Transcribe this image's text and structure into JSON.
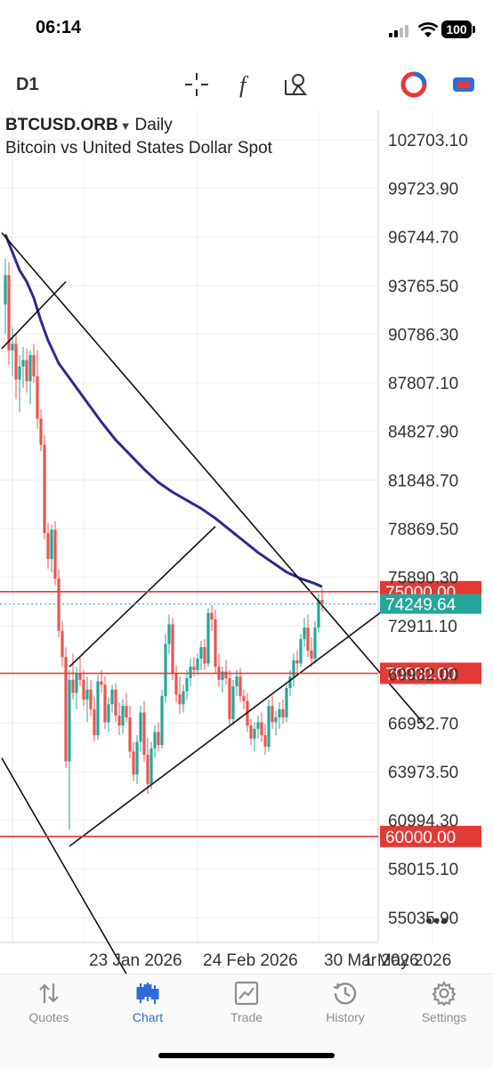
{
  "status_bar": {
    "time": "06:14",
    "battery": "100"
  },
  "toolbar": {
    "timeframe": "D1",
    "icons": [
      "crosshair-icon",
      "function-icon",
      "objects-icon",
      "trade-toggle-icon",
      "account-icon"
    ]
  },
  "chart": {
    "symbol": "BTCUSD.ORB",
    "period": "Daily",
    "description": "Bitcoin vs United States Dollar Spot",
    "price_labels": [
      "102703.10",
      "99723.90",
      "96744.70",
      "93765.50",
      "90786.30",
      "87807.10",
      "84827.90",
      "81848.70",
      "78869.50",
      "75890.30",
      "72911.10",
      "69932.00",
      "66952.70",
      "63973.50",
      "60994.30",
      "58015.10",
      "55035.90"
    ],
    "date_labels": [
      "23 Jan 2026",
      "24 Feb 2026",
      "30 Mar 2026",
      "1 May 2026"
    ],
    "horizontal_levels": [
      {
        "price": "75000.00",
        "color": "#e53935"
      },
      {
        "price": "70000.00",
        "color": "#e53935"
      },
      {
        "price": "60000.00",
        "color": "#e53935"
      }
    ],
    "current_price": {
      "price": "74249.64",
      "color": "#26a69a"
    },
    "colors": {
      "bull": "#26a69a",
      "bear": "#ef5350",
      "ma": "#2e2a8f",
      "levels": "#e53935"
    }
  },
  "chart_data": {
    "type": "candlestick",
    "y_range": [
      53500,
      104500
    ],
    "y_ticks": [
      102703.1,
      99723.9,
      96744.7,
      93765.5,
      90786.3,
      87807.1,
      84827.9,
      81848.7,
      78869.5,
      75890.3,
      72911.1,
      69932.0,
      66952.7,
      63973.5,
      60994.3,
      58015.1,
      55035.9
    ],
    "x_ticks": [
      "23 Jan 2026",
      "24 Feb 2026",
      "30 Mar 2026",
      "1 May 2026"
    ],
    "x_tick_dates": [
      "2026-01-23",
      "2026-02-24",
      "2026-03-30",
      "2026-05-01"
    ],
    "candles": [
      {
        "d": "2026-01-01",
        "o": 92600,
        "h": 95400,
        "l": 90800,
        "c": 94400
      },
      {
        "d": "2026-01-02",
        "o": 94400,
        "h": 95200,
        "l": 88900,
        "c": 89800
      },
      {
        "d": "2026-01-03",
        "o": 89800,
        "h": 91200,
        "l": 88200,
        "c": 90200
      },
      {
        "d": "2026-01-04",
        "o": 90200,
        "h": 90800,
        "l": 86800,
        "c": 88000
      },
      {
        "d": "2026-01-05",
        "o": 88000,
        "h": 89500,
        "l": 86000,
        "c": 88800
      },
      {
        "d": "2026-01-06",
        "o": 88800,
        "h": 90000,
        "l": 87500,
        "c": 89200
      },
      {
        "d": "2026-01-07",
        "o": 89200,
        "h": 89900,
        "l": 87200,
        "c": 87900
      },
      {
        "d": "2026-01-08",
        "o": 87900,
        "h": 89800,
        "l": 86500,
        "c": 89500
      },
      {
        "d": "2026-01-09",
        "o": 89500,
        "h": 90200,
        "l": 87800,
        "c": 88200
      },
      {
        "d": "2026-01-10",
        "o": 88200,
        "h": 89800,
        "l": 85000,
        "c": 85600
      },
      {
        "d": "2026-01-11",
        "o": 85600,
        "h": 86200,
        "l": 83600,
        "c": 84000
      },
      {
        "d": "2026-01-12",
        "o": 84000,
        "h": 84600,
        "l": 78200,
        "c": 78600
      },
      {
        "d": "2026-01-13",
        "o": 78600,
        "h": 79200,
        "l": 76400,
        "c": 77000
      },
      {
        "d": "2026-01-14",
        "o": 77000,
        "h": 79100,
        "l": 76200,
        "c": 78800
      },
      {
        "d": "2026-01-15",
        "o": 78800,
        "h": 79300,
        "l": 75400,
        "c": 75800
      },
      {
        "d": "2026-01-16",
        "o": 75800,
        "h": 76400,
        "l": 72200,
        "c": 72600
      },
      {
        "d": "2026-01-17",
        "o": 72600,
        "h": 73200,
        "l": 70400,
        "c": 71000
      },
      {
        "d": "2026-01-18",
        "o": 71000,
        "h": 71600,
        "l": 64200,
        "c": 64600
      },
      {
        "d": "2026-01-19",
        "o": 64600,
        "h": 70200,
        "l": 60400,
        "c": 69600
      },
      {
        "d": "2026-01-20",
        "o": 69600,
        "h": 71200,
        "l": 68400,
        "c": 68800
      },
      {
        "d": "2026-01-21",
        "o": 68800,
        "h": 70400,
        "l": 67800,
        "c": 70000
      },
      {
        "d": "2026-01-22",
        "o": 70000,
        "h": 71000,
        "l": 69200,
        "c": 69600
      },
      {
        "d": "2026-01-23",
        "o": 69600,
        "h": 70200,
        "l": 68000,
        "c": 68400
      },
      {
        "d": "2026-01-24",
        "o": 68400,
        "h": 69800,
        "l": 67000,
        "c": 69000
      },
      {
        "d": "2026-01-25",
        "o": 69000,
        "h": 69600,
        "l": 67400,
        "c": 67800
      },
      {
        "d": "2026-01-26",
        "o": 67800,
        "h": 68600,
        "l": 65800,
        "c": 66200
      },
      {
        "d": "2026-01-27",
        "o": 66200,
        "h": 69900,
        "l": 65900,
        "c": 69500
      },
      {
        "d": "2026-01-28",
        "o": 69500,
        "h": 70200,
        "l": 68800,
        "c": 69300
      },
      {
        "d": "2026-01-29",
        "o": 69300,
        "h": 69800,
        "l": 66600,
        "c": 67000
      },
      {
        "d": "2026-01-30",
        "o": 67000,
        "h": 68500,
        "l": 66400,
        "c": 68100
      },
      {
        "d": "2026-01-31",
        "o": 68100,
        "h": 69300,
        "l": 67600,
        "c": 69000
      },
      {
        "d": "2026-02-01",
        "o": 69000,
        "h": 69400,
        "l": 67000,
        "c": 67400
      },
      {
        "d": "2026-02-02",
        "o": 67400,
        "h": 68200,
        "l": 66200,
        "c": 66800
      },
      {
        "d": "2026-02-03",
        "o": 66800,
        "h": 68400,
        "l": 66300,
        "c": 68000
      },
      {
        "d": "2026-02-04",
        "o": 68000,
        "h": 68800,
        "l": 67000,
        "c": 67300
      },
      {
        "d": "2026-02-05",
        "o": 67300,
        "h": 68000,
        "l": 64800,
        "c": 65200
      },
      {
        "d": "2026-02-06",
        "o": 65200,
        "h": 65800,
        "l": 63400,
        "c": 63800
      },
      {
        "d": "2026-02-07",
        "o": 63800,
        "h": 66200,
        "l": 63200,
        "c": 65800
      },
      {
        "d": "2026-02-08",
        "o": 65800,
        "h": 68000,
        "l": 65200,
        "c": 67600
      },
      {
        "d": "2026-02-09",
        "o": 67600,
        "h": 68300,
        "l": 64600,
        "c": 65000
      },
      {
        "d": "2026-02-10",
        "o": 65000,
        "h": 66000,
        "l": 62600,
        "c": 63200
      },
      {
        "d": "2026-02-11",
        "o": 63200,
        "h": 65800,
        "l": 62900,
        "c": 65400
      },
      {
        "d": "2026-02-12",
        "o": 65400,
        "h": 66800,
        "l": 64800,
        "c": 66400
      },
      {
        "d": "2026-02-13",
        "o": 66400,
        "h": 67000,
        "l": 65200,
        "c": 65600
      },
      {
        "d": "2026-02-14",
        "o": 65600,
        "h": 69000,
        "l": 65400,
        "c": 68600
      },
      {
        "d": "2026-02-15",
        "o": 68600,
        "h": 72400,
        "l": 68200,
        "c": 71800
      },
      {
        "d": "2026-02-16",
        "o": 71800,
        "h": 73600,
        "l": 71200,
        "c": 73000
      },
      {
        "d": "2026-02-17",
        "o": 73000,
        "h": 73400,
        "l": 69600,
        "c": 70000
      },
      {
        "d": "2026-02-18",
        "o": 70000,
        "h": 70500,
        "l": 68200,
        "c": 68700
      },
      {
        "d": "2026-02-19",
        "o": 68700,
        "h": 69800,
        "l": 67500,
        "c": 68100
      },
      {
        "d": "2026-02-20",
        "o": 68100,
        "h": 69300,
        "l": 67600,
        "c": 68900
      },
      {
        "d": "2026-02-21",
        "o": 68900,
        "h": 70200,
        "l": 68400,
        "c": 69700
      },
      {
        "d": "2026-02-22",
        "o": 69700,
        "h": 70900,
        "l": 69200,
        "c": 70400
      },
      {
        "d": "2026-02-23",
        "o": 70400,
        "h": 71000,
        "l": 69800,
        "c": 70200
      },
      {
        "d": "2026-02-24",
        "o": 70200,
        "h": 71200,
        "l": 69900,
        "c": 70900
      },
      {
        "d": "2026-02-25",
        "o": 70900,
        "h": 72000,
        "l": 70200,
        "c": 71600
      },
      {
        "d": "2026-02-26",
        "o": 71600,
        "h": 72100,
        "l": 70200,
        "c": 70600
      },
      {
        "d": "2026-02-27",
        "o": 70600,
        "h": 74000,
        "l": 70400,
        "c": 73700
      },
      {
        "d": "2026-02-28",
        "o": 73700,
        "h": 74200,
        "l": 72600,
        "c": 73300
      },
      {
        "d": "2026-03-01",
        "o": 73300,
        "h": 73900,
        "l": 70000,
        "c": 70400
      },
      {
        "d": "2026-03-02",
        "o": 70400,
        "h": 71200,
        "l": 69200,
        "c": 69600
      },
      {
        "d": "2026-03-03",
        "o": 69600,
        "h": 70400,
        "l": 68800,
        "c": 70100
      },
      {
        "d": "2026-03-04",
        "o": 70100,
        "h": 70800,
        "l": 69300,
        "c": 69700
      },
      {
        "d": "2026-03-05",
        "o": 69700,
        "h": 70200,
        "l": 66800,
        "c": 67200
      },
      {
        "d": "2026-03-06",
        "o": 67200,
        "h": 69600,
        "l": 66800,
        "c": 69200
      },
      {
        "d": "2026-03-07",
        "o": 69200,
        "h": 70200,
        "l": 68600,
        "c": 69800
      },
      {
        "d": "2026-03-08",
        "o": 69800,
        "h": 70300,
        "l": 68200,
        "c": 68600
      },
      {
        "d": "2026-03-09",
        "o": 68600,
        "h": 69000,
        "l": 67800,
        "c": 68300
      },
      {
        "d": "2026-03-10",
        "o": 68300,
        "h": 68800,
        "l": 66400,
        "c": 66800
      },
      {
        "d": "2026-03-11",
        "o": 66800,
        "h": 67200,
        "l": 65600,
        "c": 66000
      },
      {
        "d": "2026-03-12",
        "o": 66000,
        "h": 67000,
        "l": 65200,
        "c": 66600
      },
      {
        "d": "2026-03-13",
        "o": 66600,
        "h": 67400,
        "l": 66000,
        "c": 67000
      },
      {
        "d": "2026-03-14",
        "o": 67000,
        "h": 67600,
        "l": 65800,
        "c": 66200
      },
      {
        "d": "2026-03-15",
        "o": 66200,
        "h": 66900,
        "l": 65000,
        "c": 65500
      },
      {
        "d": "2026-03-16",
        "o": 65500,
        "h": 68400,
        "l": 65200,
        "c": 68000
      },
      {
        "d": "2026-03-17",
        "o": 68000,
        "h": 68600,
        "l": 66600,
        "c": 67000
      },
      {
        "d": "2026-03-18",
        "o": 67000,
        "h": 67700,
        "l": 66200,
        "c": 67300
      },
      {
        "d": "2026-03-19",
        "o": 67300,
        "h": 68200,
        "l": 66600,
        "c": 67800
      },
      {
        "d": "2026-03-20",
        "o": 67800,
        "h": 68400,
        "l": 66900,
        "c": 67300
      },
      {
        "d": "2026-03-21",
        "o": 67300,
        "h": 69300,
        "l": 67000,
        "c": 69100
      },
      {
        "d": "2026-03-22",
        "o": 69100,
        "h": 70200,
        "l": 68600,
        "c": 69800
      },
      {
        "d": "2026-03-23",
        "o": 69800,
        "h": 71200,
        "l": 69200,
        "c": 70800
      },
      {
        "d": "2026-03-24",
        "o": 70800,
        "h": 71400,
        "l": 69900,
        "c": 70600
      },
      {
        "d": "2026-03-25",
        "o": 70600,
        "h": 72400,
        "l": 70400,
        "c": 72100
      },
      {
        "d": "2026-03-26",
        "o": 72100,
        "h": 73400,
        "l": 71600,
        "c": 72800
      },
      {
        "d": "2026-03-27",
        "o": 72800,
        "h": 73600,
        "l": 71000,
        "c": 71400
      },
      {
        "d": "2026-03-28",
        "o": 71400,
        "h": 72200,
        "l": 70400,
        "c": 70900
      },
      {
        "d": "2026-03-29",
        "o": 70900,
        "h": 73200,
        "l": 70600,
        "c": 72800
      },
      {
        "d": "2026-03-30",
        "o": 72800,
        "h": 74900,
        "l": 72500,
        "c": 74500
      },
      {
        "d": "2026-03-31",
        "o": 74500,
        "h": 75200,
        "l": 73800,
        "c": 74250
      }
    ],
    "moving_average": [
      {
        "d": "2026-01-01",
        "v": 96900
      },
      {
        "d": "2026-01-03",
        "v": 95800
      },
      {
        "d": "2026-01-05",
        "v": 94700
      },
      {
        "d": "2026-01-07",
        "v": 94000
      },
      {
        "d": "2026-01-09",
        "v": 93000
      },
      {
        "d": "2026-01-11",
        "v": 91600
      },
      {
        "d": "2026-01-13",
        "v": 90400
      },
      {
        "d": "2026-01-16",
        "v": 89000
      },
      {
        "d": "2026-01-20",
        "v": 87800
      },
      {
        "d": "2026-01-24",
        "v": 86600
      },
      {
        "d": "2026-01-28",
        "v": 85400
      },
      {
        "d": "2026-02-01",
        "v": 84300
      },
      {
        "d": "2026-02-05",
        "v": 83400
      },
      {
        "d": "2026-02-09",
        "v": 82500
      },
      {
        "d": "2026-02-13",
        "v": 81700
      },
      {
        "d": "2026-02-17",
        "v": 81100
      },
      {
        "d": "2026-02-21",
        "v": 80600
      },
      {
        "d": "2026-02-25",
        "v": 80100
      },
      {
        "d": "2026-03-01",
        "v": 79500
      },
      {
        "d": "2026-03-05",
        "v": 78800
      },
      {
        "d": "2026-03-09",
        "v": 78100
      },
      {
        "d": "2026-03-13",
        "v": 77400
      },
      {
        "d": "2026-03-17",
        "v": 76800
      },
      {
        "d": "2026-03-21",
        "v": 76200
      },
      {
        "d": "2026-03-25",
        "v": 75800
      },
      {
        "d": "2026-03-29",
        "v": 75500
      },
      {
        "d": "2026-03-31",
        "v": 75300
      }
    ],
    "trend_lines": [
      {
        "from": {
          "d": "2025-12-31",
          "p": 97000
        },
        "to": {
          "d": "2026-04-29",
          "p": 66800
        }
      },
      {
        "from": {
          "d": "2025-12-31",
          "p": 89900
        },
        "to": {
          "d": "2026-01-18",
          "p": 94000
        }
      },
      {
        "from": {
          "d": "2026-01-19",
          "p": 70400
        },
        "to": {
          "d": "2026-02-29",
          "p": 79000
        }
      },
      {
        "from": {
          "d": "2026-01-19",
          "p": 59400
        },
        "to": {
          "d": "2026-04-26",
          "p": 75300
        }
      },
      {
        "from": {
          "d": "2025-12-31",
          "p": 64800
        },
        "to": {
          "d": "2026-02-10",
          "p": 49300
        }
      }
    ]
  },
  "tabbar": {
    "tabs": [
      {
        "label": "Quotes",
        "name": "tab-quotes"
      },
      {
        "label": "Chart",
        "name": "tab-chart"
      },
      {
        "label": "Trade",
        "name": "tab-trade"
      },
      {
        "label": "History",
        "name": "tab-history"
      },
      {
        "label": "Settings",
        "name": "tab-settings"
      }
    ],
    "active": "Chart"
  }
}
